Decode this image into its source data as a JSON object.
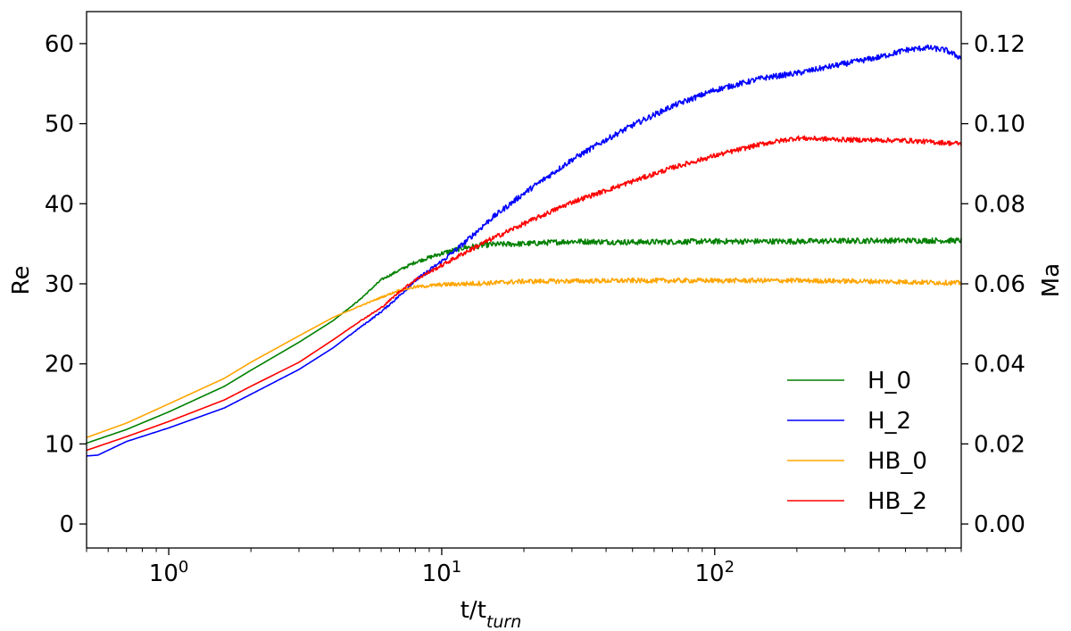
{
  "chart_data": {
    "type": "line",
    "title": "",
    "xlabel": "t/t",
    "xlabel_sub": "turn",
    "ylabel": "Re",
    "ylabel_right": "Ma",
    "xscale": "log",
    "xlim": [
      0.5,
      800
    ],
    "ylim": [
      -3,
      64
    ],
    "ylim_right": [
      -0.006,
      0.128
    ],
    "xticks": [
      1,
      10,
      100
    ],
    "xtick_labels": [
      {
        "base": "10",
        "exp": "0"
      },
      {
        "base": "10",
        "exp": "1"
      },
      {
        "base": "10",
        "exp": "2"
      }
    ],
    "yticks": [
      0,
      10,
      20,
      30,
      40,
      50,
      60
    ],
    "yticks_right": [
      0.0,
      0.02,
      0.04,
      0.06,
      0.08,
      0.1,
      0.12
    ],
    "yticks_right_labels": [
      "0.00",
      "0.02",
      "0.04",
      "0.06",
      "0.08",
      "0.10",
      "0.12"
    ],
    "grid": false,
    "legend": "lower-right",
    "series": [
      {
        "name": "H_0",
        "color": "#008000",
        "noise": 0.35,
        "points": [
          [
            0.5,
            10.1
          ],
          [
            0.7,
            11.8
          ],
          [
            1,
            14
          ],
          [
            1.6,
            17.2
          ],
          [
            2,
            19.2
          ],
          [
            3,
            22.7
          ],
          [
            4,
            25.4
          ],
          [
            5,
            28
          ],
          [
            6,
            30.5
          ],
          [
            7,
            31.7
          ],
          [
            8,
            32.7
          ],
          [
            10,
            33.8
          ],
          [
            12,
            34.5
          ],
          [
            15,
            34.9
          ],
          [
            20,
            35.0
          ],
          [
            30,
            35.3
          ],
          [
            50,
            35.2
          ],
          [
            100,
            35.3
          ],
          [
            200,
            35.3
          ],
          [
            400,
            35.4
          ],
          [
            800,
            35.4
          ]
        ]
      },
      {
        "name": "H_2",
        "color": "#0000ff",
        "noise": 0.35,
        "points": [
          [
            0.5,
            8.5
          ],
          [
            0.55,
            8.6
          ],
          [
            0.7,
            10.3
          ],
          [
            1,
            12
          ],
          [
            1.6,
            14.5
          ],
          [
            2,
            16.2
          ],
          [
            3,
            19.3
          ],
          [
            4,
            22
          ],
          [
            5,
            24.5
          ],
          [
            6,
            26.5
          ],
          [
            7,
            28.5
          ],
          [
            8,
            30.4
          ],
          [
            10,
            32.8
          ],
          [
            12,
            35
          ],
          [
            15,
            38
          ],
          [
            20,
            41.3
          ],
          [
            30,
            45.5
          ],
          [
            40,
            48
          ],
          [
            50,
            49.8
          ],
          [
            70,
            52.2
          ],
          [
            100,
            54.2
          ],
          [
            150,
            55.7
          ],
          [
            200,
            56.3
          ],
          [
            300,
            57.5
          ],
          [
            400,
            58.3
          ],
          [
            500,
            59.2
          ],
          [
            600,
            59.5
          ],
          [
            700,
            59.2
          ],
          [
            800,
            58.2
          ]
        ]
      },
      {
        "name": "HB_0",
        "color": "#ffa500",
        "noise": 0.3,
        "points": [
          [
            0.5,
            10.8
          ],
          [
            0.7,
            12.6
          ],
          [
            1,
            15
          ],
          [
            1.6,
            18.2
          ],
          [
            2,
            20.2
          ],
          [
            3,
            23.5
          ],
          [
            4,
            25.8
          ],
          [
            5,
            27.2
          ],
          [
            6,
            28.3
          ],
          [
            7,
            29.2
          ],
          [
            8,
            29.6
          ],
          [
            10,
            29.9
          ],
          [
            15,
            30.1
          ],
          [
            20,
            30.3
          ],
          [
            50,
            30.4
          ],
          [
            100,
            30.4
          ],
          [
            200,
            30.4
          ],
          [
            400,
            30.3
          ],
          [
            800,
            30.1
          ]
        ]
      },
      {
        "name": "HB_2",
        "color": "#ff0000",
        "noise": 0.3,
        "points": [
          [
            0.5,
            9.2
          ],
          [
            0.7,
            10.9
          ],
          [
            1,
            12.8
          ],
          [
            1.6,
            15.5
          ],
          [
            2,
            17.2
          ],
          [
            3,
            20.2
          ],
          [
            4,
            23
          ],
          [
            5,
            25.3
          ],
          [
            6,
            27
          ],
          [
            7,
            29
          ],
          [
            8,
            30.5
          ],
          [
            10,
            32.3
          ],
          [
            12,
            33.8
          ],
          [
            15,
            35.5
          ],
          [
            20,
            37.5
          ],
          [
            30,
            40.2
          ],
          [
            50,
            42.8
          ],
          [
            70,
            44.5
          ],
          [
            100,
            46
          ],
          [
            150,
            47.5
          ],
          [
            200,
            48.2
          ],
          [
            300,
            48
          ],
          [
            500,
            47.9
          ],
          [
            800,
            47.5
          ]
        ]
      }
    ]
  }
}
